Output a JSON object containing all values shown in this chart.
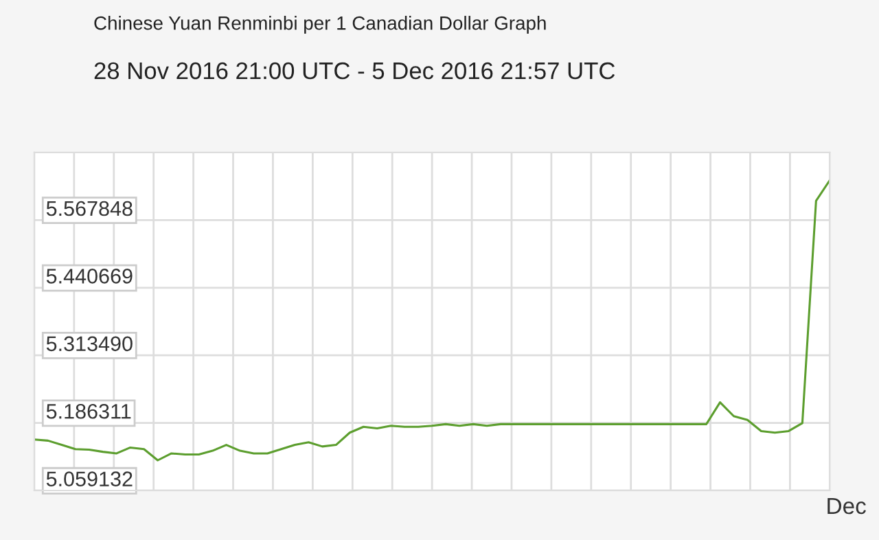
{
  "chart_data": {
    "type": "line",
    "title": "Chinese Yuan Renminbi per 1 Canadian Dollar Graph",
    "subtitle": "28 Nov 2016 21:00 UTC - 5 Dec 2016 21:57 UTC",
    "xlabel": "Dec",
    "categories": [
      null,
      null,
      null,
      null,
      null,
      null,
      null,
      null,
      null,
      null,
      null,
      null,
      null,
      null,
      null,
      null,
      null,
      null,
      null,
      null,
      null,
      null,
      null,
      null,
      null,
      null,
      null,
      null,
      null,
      null,
      null,
      null,
      null,
      null,
      null,
      null,
      null,
      null,
      null,
      null,
      null,
      null,
      null,
      null,
      null,
      null,
      null,
      null,
      null,
      null,
      null,
      null,
      null,
      null,
      null,
      null,
      null,
      null,
      null
    ],
    "series": [
      {
        "color": "#5c9e2e",
        "values": [
          5.155,
          5.153,
          5.145,
          5.137,
          5.136,
          5.132,
          5.129,
          5.14,
          5.137,
          5.116,
          5.129,
          5.127,
          5.127,
          5.134,
          5.145,
          5.134,
          5.129,
          5.129,
          5.137,
          5.145,
          5.15,
          5.142,
          5.145,
          5.168,
          5.179,
          5.176,
          5.181,
          5.179,
          5.179,
          5.181,
          5.184,
          5.181,
          5.184,
          5.181,
          5.184,
          5.184,
          5.184,
          5.184,
          5.184,
          5.184,
          5.184,
          5.184,
          5.184,
          5.184,
          5.184,
          5.184,
          5.184,
          5.184,
          5.184,
          5.184,
          5.225,
          5.199,
          5.192,
          5.171,
          5.168,
          5.171,
          5.186,
          5.604,
          5.643
        ]
      }
    ],
    "ylim": [
      5.059132,
      5.695027
    ],
    "yticks": [
      5.059132,
      5.186311,
      {
        "value": 5.31349,
        "label": "5.313490"
      },
      5.440669,
      5.567848
    ],
    "grid": true,
    "marker": "none",
    "line_style": "solid"
  }
}
